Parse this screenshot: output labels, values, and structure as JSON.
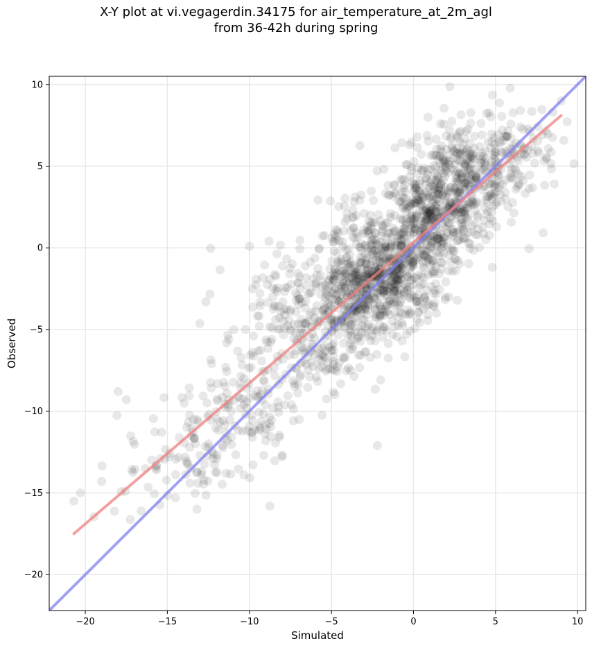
{
  "chart_data": {
    "type": "scatter",
    "title_line1": "X-Y plot at vi.vegagerdin.34175 for air_temperature_at_2m_agl",
    "title_line2": "from 36-42h during spring",
    "xlabel": "Simulated",
    "ylabel": "Observed",
    "xlim": [
      -22.2,
      10.5
    ],
    "ylim": [
      -22.2,
      10.5
    ],
    "xticks": [
      -20,
      -15,
      -10,
      -5,
      0,
      5,
      10
    ],
    "yticks": [
      -20,
      -15,
      -10,
      -5,
      0,
      5,
      10
    ],
    "xtick_labels": [
      "−20",
      "−15",
      "−10",
      "−5",
      "0",
      "5",
      "10"
    ],
    "ytick_labels": [
      "−20",
      "−15",
      "−10",
      "−5",
      "0",
      "5",
      "10"
    ],
    "grid": true,
    "point_color": "#000000",
    "point_alpha": 0.09,
    "fit_line": {
      "color": "#f08080",
      "x": [
        -20.7,
        9.0
      ],
      "y": [
        -17.5,
        8.1
      ]
    },
    "identity_line": {
      "color": "#8080f0",
      "x": [
        -22.2,
        10.5
      ],
      "y": [
        -22.2,
        10.5
      ]
    },
    "clusters": [
      {
        "x": 3.0,
        "y": 4.3,
        "sx": 1.8,
        "sy": 1.7,
        "n": 380
      },
      {
        "x": 1.0,
        "y": 1.5,
        "sx": 1.6,
        "sy": 1.6,
        "n": 360
      },
      {
        "x": -1.5,
        "y": -1.5,
        "sx": 1.6,
        "sy": 1.6,
        "n": 380
      },
      {
        "x": -3.2,
        "y": -3.0,
        "sx": 1.5,
        "sy": 1.5,
        "n": 260
      },
      {
        "x": -5.0,
        "y": -4.8,
        "sx": 1.6,
        "sy": 1.8,
        "n": 160
      },
      {
        "x": -8.0,
        "y": -6.5,
        "sx": 1.8,
        "sy": 2.0,
        "n": 110
      },
      {
        "x": -10.5,
        "y": -10.0,
        "sx": 1.8,
        "sy": 1.6,
        "n": 110
      },
      {
        "x": -13.0,
        "y": -13.0,
        "sx": 1.5,
        "sy": 1.3,
        "n": 55
      },
      {
        "x": -16.0,
        "y": -14.0,
        "sx": 2.0,
        "sy": 1.6,
        "n": 25
      },
      {
        "x": 6.5,
        "y": 6.3,
        "sx": 1.2,
        "sy": 1.4,
        "n": 80
      },
      {
        "x": -8.0,
        "y": -2.5,
        "sx": 1.8,
        "sy": 1.6,
        "n": 70
      },
      {
        "x": -3.0,
        "y": 1.0,
        "sx": 1.6,
        "sy": 1.5,
        "n": 45
      }
    ],
    "outliers": [
      [
        -20.7,
        -15.5
      ],
      [
        -20.3,
        -15.0
      ],
      [
        -19.0,
        -14.3
      ],
      [
        -18.0,
        -8.8
      ],
      [
        -17.5,
        -9.3
      ],
      [
        -16.6,
        -16.1
      ],
      [
        -12.0,
        -12.9
      ],
      [
        -10.0,
        0.1
      ],
      [
        -2.2,
        -12.1
      ],
      [
        1.4,
        -4.0
      ],
      [
        -1.8,
        4.8
      ],
      [
        9.0,
        9.0
      ],
      [
        8.5,
        8.3
      ],
      [
        -13.2,
        -16.0
      ],
      [
        -14.5,
        -15.3
      ],
      [
        -8.0,
        -12.7
      ]
    ]
  }
}
